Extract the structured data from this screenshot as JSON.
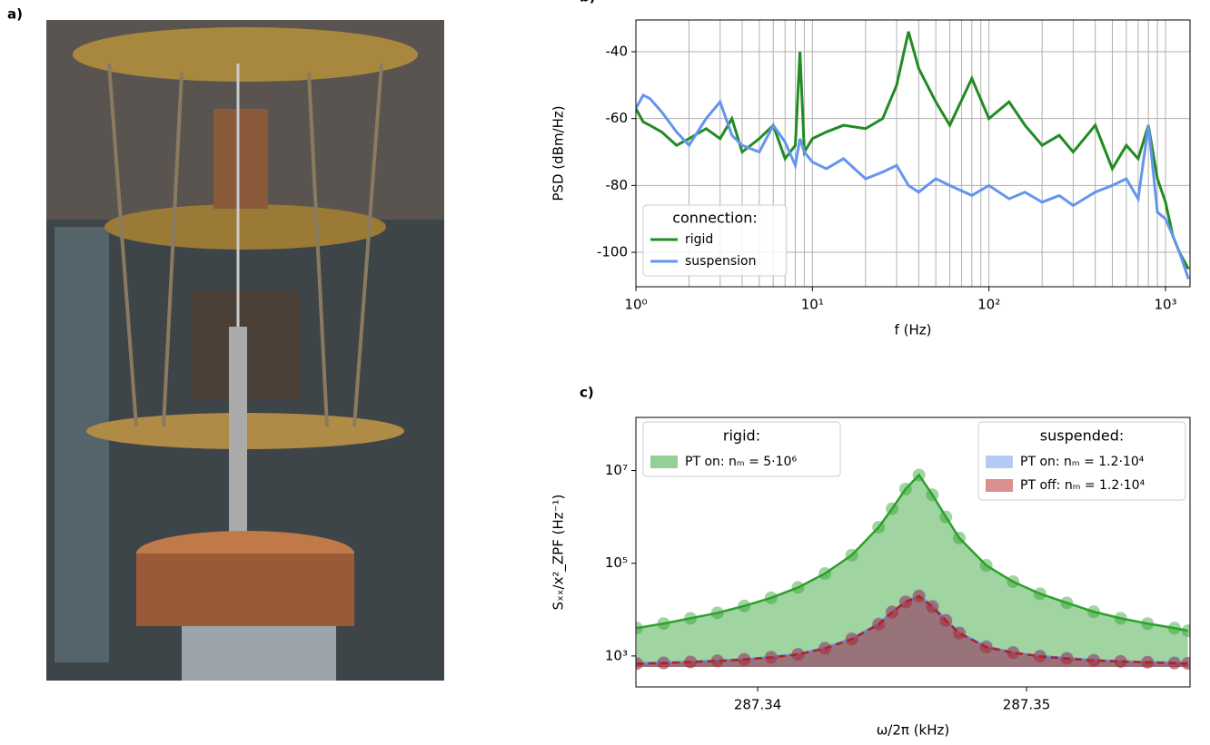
{
  "panel_labels": [
    "a)",
    "b)",
    "c)"
  ],
  "chart_data": [
    {
      "type": "line",
      "x_log": true,
      "grid": true,
      "x_label": "f (Hz)",
      "y_label": "PSD (dBm/Hz)",
      "xlim": [
        1,
        1377
      ],
      "ylim": [
        -110.3,
        -30.5
      ],
      "xticks": [
        {
          "value": 1,
          "label": "10⁰"
        },
        {
          "value": 10,
          "label": "10¹"
        },
        {
          "value": 100,
          "label": "10²"
        },
        {
          "value": 1000,
          "label": "10³"
        }
      ],
      "xminorticks": [
        2,
        3,
        4,
        5,
        6,
        7,
        8,
        9,
        20,
        30,
        40,
        50,
        60,
        70,
        80,
        90,
        200,
        300,
        400,
        500,
        600,
        700,
        800,
        900
      ],
      "yticks": [
        -40,
        -60,
        -80,
        -100
      ],
      "legend_title": "connection:",
      "legend_corner": "lower left",
      "x": [
        1,
        1.1,
        1.2,
        1.4,
        1.7,
        2,
        2.5,
        3,
        3.5,
        4,
        5,
        6,
        7,
        8,
        8.5,
        9,
        10,
        12,
        15,
        20,
        25,
        30,
        35,
        40,
        50,
        60,
        80,
        100,
        130,
        160,
        200,
        250,
        300,
        400,
        500,
        600,
        700,
        800,
        900,
        1000,
        1100,
        1200,
        1350
      ],
      "series": [
        {
          "name": "rigid",
          "color": "#228b22",
          "values": [
            -57,
            -61,
            -62,
            -64,
            -68,
            -66,
            -63,
            -66,
            -60,
            -70,
            -66,
            -62,
            -72,
            -68,
            -40,
            -70,
            -66,
            -64,
            -62,
            -63,
            -60,
            -50,
            -34,
            -45,
            -55,
            -62,
            -48,
            -60,
            -55,
            -62,
            -68,
            -65,
            -70,
            -62,
            -75,
            -68,
            -72,
            -62,
            -78,
            -85,
            -95,
            -100,
            -105
          ]
        },
        {
          "name": "suspension",
          "color": "#6495ed",
          "values": [
            -57,
            -53,
            -54,
            -58,
            -64,
            -68,
            -60,
            -55,
            -65,
            -68,
            -70,
            -62,
            -67,
            -74,
            -66,
            -70,
            -73,
            -75,
            -72,
            -78,
            -76,
            -74,
            -80,
            -82,
            -78,
            -80,
            -83,
            -80,
            -84,
            -82,
            -85,
            -83,
            -86,
            -82,
            -80,
            -78,
            -84,
            -62,
            -88,
            -90,
            -95,
            -100,
            -108
          ]
        }
      ]
    },
    {
      "type": "scatter",
      "y_log": true,
      "x_label": "ω/2π (kHz)",
      "y_label": "Sₓₓ/x²_ZPF (Hz⁻¹)",
      "xlim": [
        287.33547,
        287.35608
      ],
      "ylim": [
        215,
        140000000
      ],
      "xticks": [
        287.34,
        287.35
      ],
      "yticks": [
        {
          "value": 1000,
          "label": "10³"
        },
        {
          "value": 100000,
          "label": "10⁵"
        },
        {
          "value": 10000000,
          "label": "10⁷"
        }
      ],
      "legend_titles": [
        "rigid:",
        "suspended:"
      ],
      "x": [
        287.3355,
        287.3365,
        287.3375,
        287.3385,
        287.3395,
        287.3405,
        287.3415,
        287.3425,
        287.3435,
        287.3445,
        287.345,
        287.3455,
        287.346,
        287.3465,
        287.347,
        287.3475,
        287.3485,
        287.3495,
        287.3505,
        287.3515,
        287.3525,
        287.3535,
        287.3545,
        287.3555,
        287.356
      ],
      "series": [
        {
          "name": "PT on: nₘ = 5·10⁶",
          "group": 0,
          "color": "#2ca02c",
          "values": [
            4000,
            5000,
            6500,
            8500,
            12000,
            18000,
            30000,
            60000,
            150000,
            600000,
            1500000,
            4000000,
            8000000,
            3000000,
            1000000,
            350000,
            90000,
            40000,
            22000,
            14000,
            9000,
            6500,
            5000,
            4000,
            3500
          ]
        },
        {
          "name": "PT on: nₘ = 1.2·10⁴",
          "group": 1,
          "color": "#6495ed",
          "values": [
            700,
            720,
            750,
            800,
            850,
            950,
            1100,
            1500,
            2400,
            5000,
            9000,
            15000,
            20000,
            12000,
            6000,
            3200,
            1600,
            1200,
            1000,
            900,
            820,
            770,
            740,
            720,
            700
          ]
        },
        {
          "name": "PT off: nₘ = 1.2·10⁴",
          "group": 1,
          "color": "#b22222",
          "values": [
            680,
            700,
            740,
            780,
            840,
            930,
            1080,
            1450,
            2300,
            4800,
            8800,
            14500,
            19500,
            11500,
            5800,
            3100,
            1550,
            1180,
            980,
            880,
            800,
            760,
            730,
            700,
            690
          ]
        }
      ]
    }
  ]
}
